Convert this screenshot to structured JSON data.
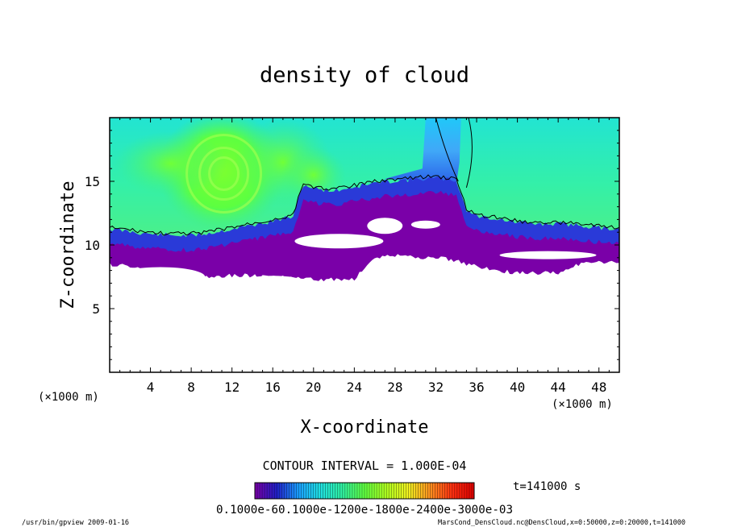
{
  "chart_data": {
    "type": "heatmap",
    "title": "density of cloud",
    "xlabel": "X-coordinate",
    "ylabel": "Z-coordinate",
    "x_unit": "(×1000 m)",
    "x_unit_right": "(×1000 m)",
    "xlim": [
      0,
      50
    ],
    "ylim": [
      0,
      20
    ],
    "x_ticks": [
      4,
      8,
      12,
      16,
      20,
      24,
      28,
      32,
      36,
      40,
      44,
      48
    ],
    "y_ticks": [
      5,
      10,
      15
    ],
    "contour_interval_text": "CONTOUR INTERVAL = 1.000E-04",
    "time_text": "t=141000 s",
    "colorbar_label_text": "0.1000e-60.1000e-1200e-1800e-2400e-3000e-03",
    "colormap": [
      "#7a00a8",
      "#2020c8",
      "#1aa0ff",
      "#20e0e0",
      "#30f0a0",
      "#60ff40",
      "#b0ff20",
      "#f0f020",
      "#ff9020",
      "#ff3010",
      "#e00000"
    ],
    "cloud_profile": {
      "x": [
        0,
        2,
        4,
        6,
        8,
        10,
        12,
        14,
        16,
        18,
        19,
        20,
        22,
        24,
        26,
        28,
        30,
        32,
        34,
        35,
        36,
        38,
        40,
        42,
        44,
        46,
        48,
        50
      ],
      "cloud_top": [
        11.0,
        10.8,
        10.6,
        10.5,
        10.5,
        10.7,
        11.0,
        11.3,
        11.6,
        12.0,
        14.5,
        14.2,
        14.0,
        14.3,
        14.6,
        14.8,
        14.9,
        15.0,
        14.8,
        12.5,
        12.0,
        11.8,
        11.5,
        11.4,
        11.4,
        11.3,
        11.1,
        11.0
      ],
      "cloud_base": [
        8.5,
        8.3,
        8.1,
        7.6,
        7.4,
        7.5,
        7.6,
        7.6,
        7.5,
        7.4,
        7.3,
        7.3,
        7.3,
        7.3,
        9.0,
        9.2,
        9.0,
        9.0,
        8.8,
        8.5,
        8.3,
        8.0,
        7.8,
        7.8,
        7.8,
        8.5,
        8.6,
        8.6
      ]
    },
    "plume": {
      "x": [
        31,
        34
      ],
      "z_top": 20
    }
  },
  "footer": {
    "left": "/usr/bin/gpview  2009-01-16",
    "right": "MarsCond_DensCloud.nc@DensCloud,x=0:50000,z=0:20000,t=141000"
  }
}
